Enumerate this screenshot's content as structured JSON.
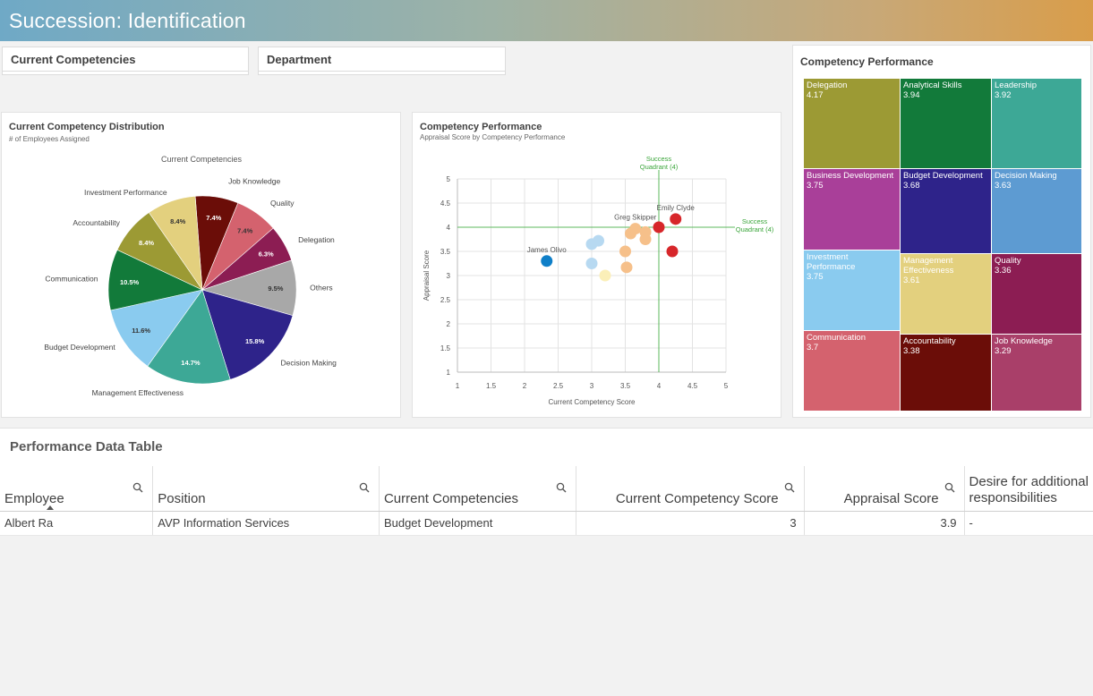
{
  "app": {
    "title": "Succession: Identification"
  },
  "filters": [
    {
      "label": "Current Competencies"
    },
    {
      "label": "Department"
    }
  ],
  "pie": {
    "title": "Current Competency Distribution",
    "subtitle": "# of Employees Assigned",
    "legend_title": "Current Competencies"
  },
  "scatter": {
    "title": "Competency Performance",
    "subtitle": "Appraisal Score by Competency Performance",
    "quadrant_label_top": [
      "Success",
      "Quadrant (4)"
    ],
    "quadrant_label_right": [
      "Success",
      "Quadrant (4)"
    ]
  },
  "treemap": {
    "title": "Competency Performance"
  },
  "chart_data": [
    {
      "type": "pie",
      "title": "Current Competency Distribution",
      "subtitle": "# of Employees Assigned",
      "legend_title": "Current Competencies",
      "slices": [
        {
          "name": "Job Knowledge",
          "value": 7.4,
          "label": "7.4%",
          "color": "#6b0d08"
        },
        {
          "name": "Quality",
          "value": 7.4,
          "label": "7.4%",
          "color": "#d4626e"
        },
        {
          "name": "Delegation",
          "value": 6.3,
          "label": "6.3%",
          "color": "#8c1d53"
        },
        {
          "name": "Others",
          "value": 9.5,
          "label": "9.5%",
          "color": "#a8a8a8"
        },
        {
          "name": "Decision Making",
          "value": 15.8,
          "label": "15.8%",
          "color": "#2e238a"
        },
        {
          "name": "Management Effectiveness",
          "value": 14.7,
          "label": "14.7%",
          "color": "#3da896"
        },
        {
          "name": "Budget Development",
          "value": 11.6,
          "label": "11.6%",
          "color": "#8acbef"
        },
        {
          "name": "Communication",
          "value": 10.5,
          "label": "10.5%",
          "color": "#127a3a"
        },
        {
          "name": "Accountability",
          "value": 8.4,
          "label": "8.4%",
          "color": "#9c9a34"
        },
        {
          "name": "Investment Performance",
          "value": 8.4,
          "label": "8.4%",
          "color": "#e3d07e"
        }
      ]
    },
    {
      "type": "scatter",
      "title": "Competency Performance",
      "subtitle": "Appraisal Score by Competency Performance",
      "xlabel": "Current Competency Score",
      "ylabel": "Appraisal Score",
      "xlim": [
        1,
        5
      ],
      "ylim": [
        1,
        5
      ],
      "xticks": [
        "1",
        "1.5",
        "2",
        "2.5",
        "3",
        "3.5",
        "4",
        "4.5",
        "5"
      ],
      "yticks": [
        "1",
        "1.5",
        "2",
        "2.5",
        "3",
        "3.5",
        "4",
        "4.5",
        "5"
      ],
      "grid": true,
      "reference_lines": {
        "x": 4,
        "y": 4
      },
      "points": [
        {
          "x": 2.33,
          "y": 3.3,
          "color": "#0f7fc8",
          "label": "James Olivo"
        },
        {
          "x": 3.0,
          "y": 3.65,
          "color": "#b7d9f1",
          "label": ""
        },
        {
          "x": 3.1,
          "y": 3.72,
          "color": "#b7d9f1",
          "label": ""
        },
        {
          "x": 3.0,
          "y": 3.25,
          "color": "#b7d9f1",
          "label": ""
        },
        {
          "x": 3.2,
          "y": 3.0,
          "color": "#fbefb8",
          "label": ""
        },
        {
          "x": 3.5,
          "y": 3.5,
          "color": "#f6c08a",
          "label": ""
        },
        {
          "x": 3.52,
          "y": 3.17,
          "color": "#f6c08a",
          "label": ""
        },
        {
          "x": 3.58,
          "y": 3.87,
          "color": "#f6c08a",
          "label": ""
        },
        {
          "x": 3.65,
          "y": 3.97,
          "color": "#f6c08a",
          "label": "Greg Skipper"
        },
        {
          "x": 3.8,
          "y": 3.9,
          "color": "#f6c08a",
          "label": ""
        },
        {
          "x": 3.8,
          "y": 3.75,
          "color": "#f6c08a",
          "label": ""
        },
        {
          "x": 4.0,
          "y": 4.0,
          "color": "#d7262a",
          "label": ""
        },
        {
          "x": 4.25,
          "y": 4.17,
          "color": "#d7262a",
          "label": "Emily Clyde"
        },
        {
          "x": 4.2,
          "y": 3.5,
          "color": "#d7262a",
          "label": ""
        }
      ]
    },
    {
      "type": "treemap",
      "title": "Competency Performance",
      "cells": [
        {
          "name": "Delegation",
          "value": "4.17",
          "color": "#9c9a34"
        },
        {
          "name": "Analytical Skills",
          "value": "3.94",
          "color": "#127a3a"
        },
        {
          "name": "Leadership",
          "value": "3.92",
          "color": "#3da896"
        },
        {
          "name": "Business Development",
          "value": "3.75",
          "color": "#a93f99"
        },
        {
          "name": "Budget Development",
          "value": "3.68",
          "color": "#2e238a"
        },
        {
          "name": "Decision Making",
          "value": "3.63",
          "color": "#5d9bd2"
        },
        {
          "name": "Investment Performance",
          "value": "3.75",
          "color": "#8acbef"
        },
        {
          "name": "Management Effectiveness",
          "value": "3.61",
          "color": "#e3d07e"
        },
        {
          "name": "Quality",
          "value": "3.36",
          "color": "#8c1d53"
        },
        {
          "name": "Communication",
          "value": "3.7",
          "color": "#d4626e"
        },
        {
          "name": "Accountability",
          "value": "3.38",
          "color": "#6b0d08"
        },
        {
          "name": "Job Knowledge",
          "value": "3.29",
          "color": "#a93f69"
        }
      ]
    }
  ],
  "table": {
    "title": "Performance Data Table",
    "columns": [
      "Employee",
      "Position",
      "Current Competencies",
      "Current Competency Score",
      "Appraisal Score",
      "Desire for additional",
      "responsibilities"
    ],
    "rows": [
      {
        "employee": "Albert Ra",
        "position": "AVP Information Services",
        "competency": "Budget Development",
        "competency_score": "3",
        "appraisal_score": "3.9",
        "desire": "-"
      }
    ]
  },
  "icons": {
    "column_search": "search-icon",
    "sort": "sort-ascending-icon"
  }
}
